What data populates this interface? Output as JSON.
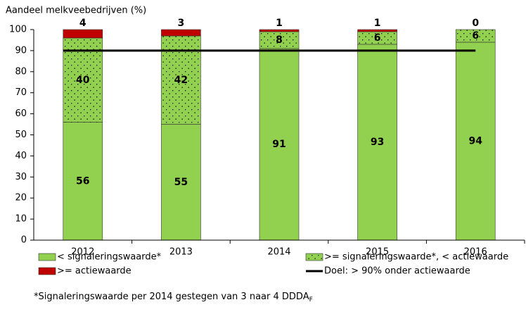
{
  "chart_data": {
    "type": "stacked-bar",
    "y_label": "Aandeel melkveebedrijven (%)",
    "categories": [
      "2012",
      "2013",
      "2014",
      "2015",
      "2016"
    ],
    "series": [
      {
        "name": "< signaleringswaarde*",
        "color": "#92d050",
        "values": [
          56,
          55,
          91,
          93,
          94
        ]
      },
      {
        "name": ">= signaleringswaarde*, < actiewaarde",
        "color": "#92d050",
        "pattern": "dots",
        "values": [
          40,
          42,
          8,
          6,
          6
        ]
      },
      {
        "name": ">= actiewaarde",
        "color": "#c00000",
        "values": [
          4,
          3,
          1,
          1,
          0
        ]
      }
    ],
    "target": {
      "name": "Doel: > 90% onder actiewaarde",
      "value": 90,
      "color": "#000000"
    },
    "ylim": [
      0,
      100
    ],
    "yticks": [
      0,
      10,
      20,
      30,
      40,
      50,
      60,
      70,
      80,
      90,
      100
    ],
    "footnote": {
      "text": "*Signaleringswaarde per 2014 gestegen van 3 naar 4 DDDA",
      "subscript": "F"
    }
  }
}
